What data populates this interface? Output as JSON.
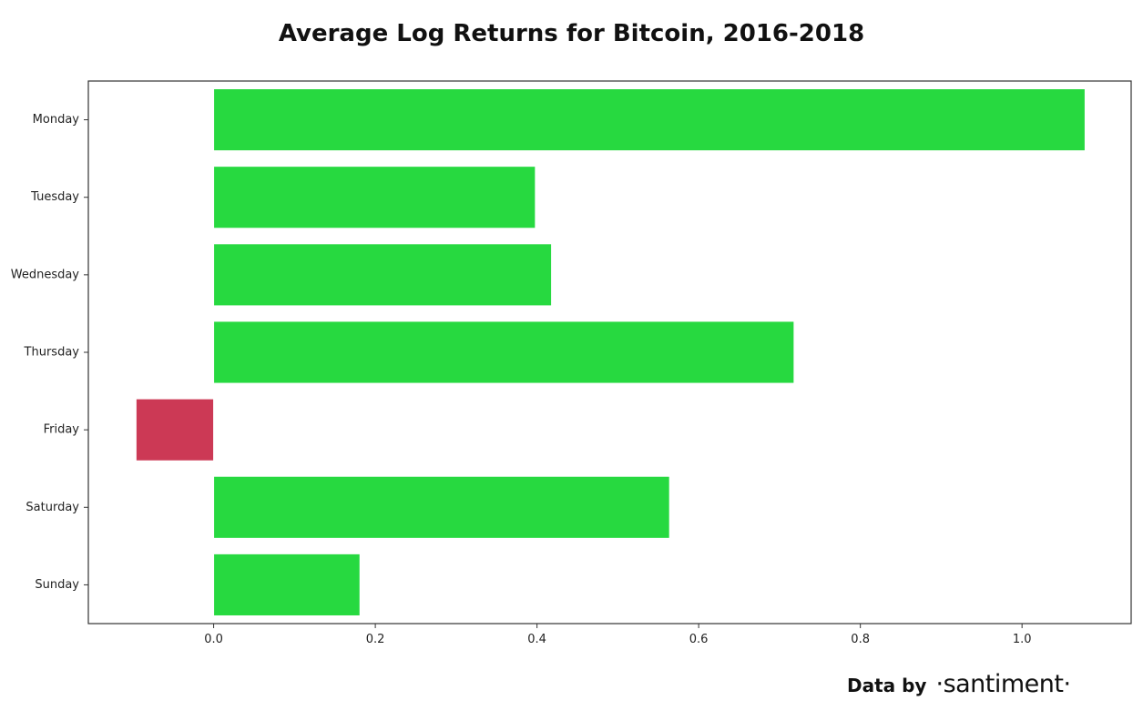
{
  "chart_data": {
    "type": "bar",
    "orientation": "horizontal",
    "title": "Average Log Returns for Bitcoin, 2016-2018",
    "xlabel": "",
    "ylabel": "",
    "categories": [
      "Monday",
      "Tuesday",
      "Wednesday",
      "Thursday",
      "Friday",
      "Saturday",
      "Sunday"
    ],
    "values": [
      1.078,
      0.398,
      0.418,
      0.718,
      -0.096,
      0.564,
      0.181
    ],
    "xlim": [
      -0.155,
      1.135
    ],
    "xticks": [
      "0.0",
      "0.2",
      "0.4",
      "0.6",
      "0.8",
      "1.0"
    ],
    "grid": false,
    "colors": {
      "positive": "#27d940",
      "negative": "#cc3955",
      "axis": "#333333"
    }
  },
  "credit": {
    "prefix": "Data by",
    "brand": "·santiment·"
  }
}
